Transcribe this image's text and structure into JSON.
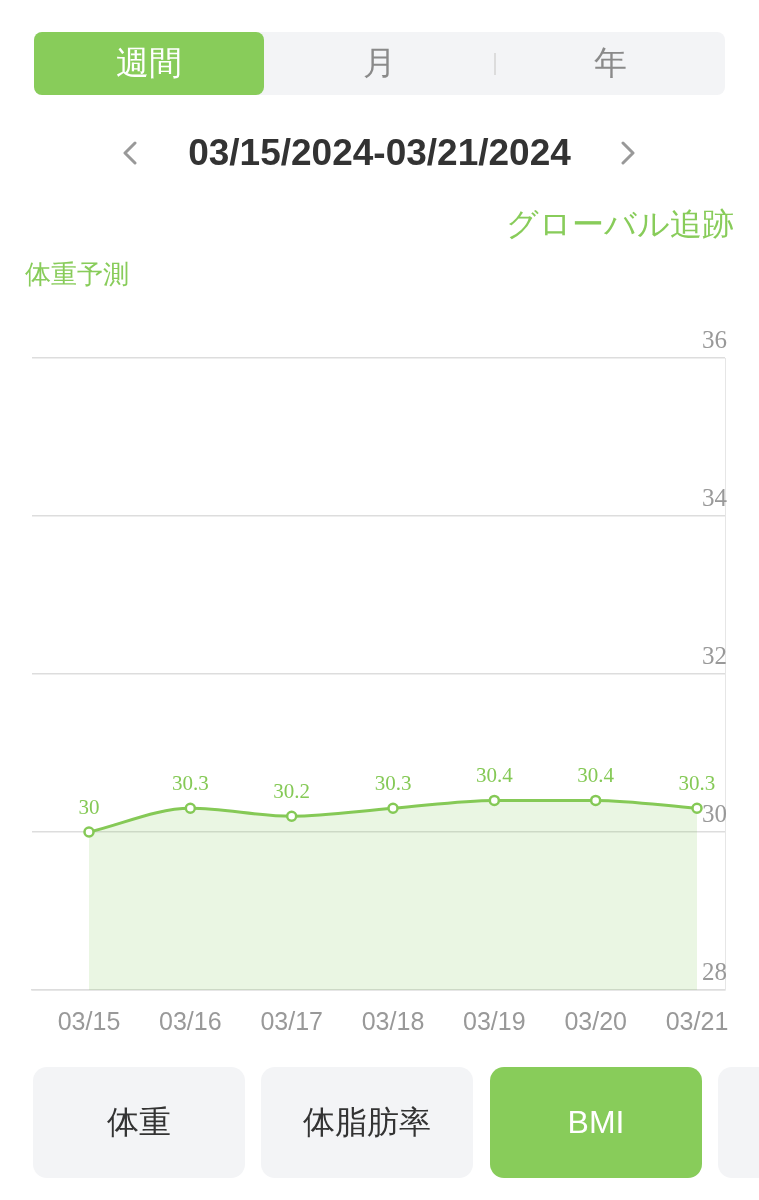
{
  "chart_data": {
    "type": "area",
    "title": "03/15/2024-03/21/2024",
    "annotations": [
      "週間",
      "月",
      "年",
      "グローバル追跡",
      "体重予測",
      "体重",
      "体脂肪率",
      "BMI"
    ],
    "categories": [
      "03/15",
      "03/16",
      "03/17",
      "03/18",
      "03/19",
      "03/20",
      "03/21"
    ],
    "values": [
      30,
      30.3,
      30.2,
      30.3,
      30.4,
      30.4,
      30.3
    ],
    "color": "#85c956",
    "ylim": [
      28,
      36
    ],
    "yticks": [
      28,
      30,
      32,
      34,
      36
    ],
    "grid": "y",
    "marker": "circle",
    "data_labels": true
  }
}
